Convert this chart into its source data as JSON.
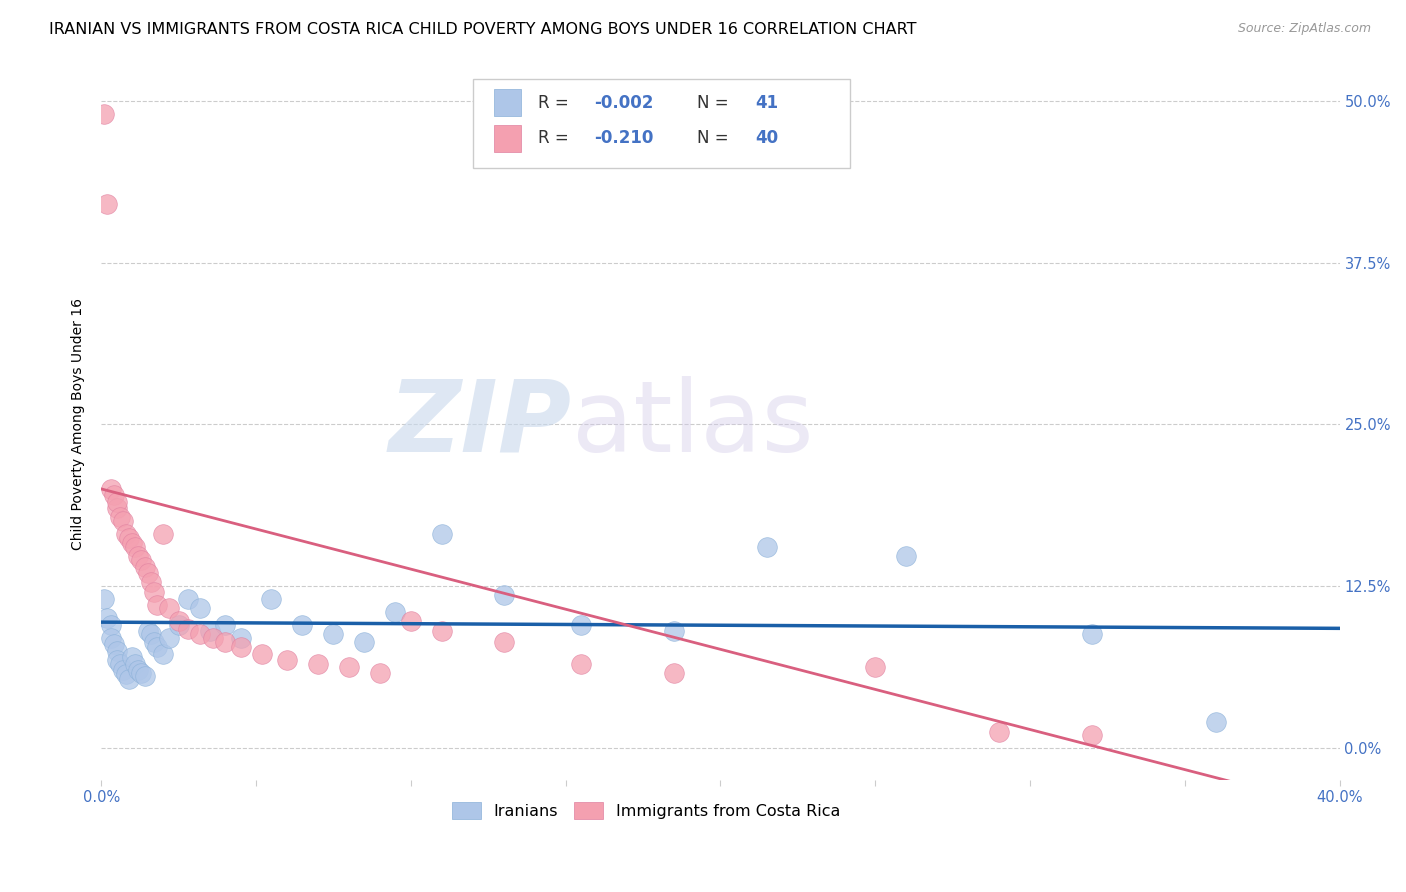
{
  "title": "IRANIAN VS IMMIGRANTS FROM COSTA RICA CHILD POVERTY AMONG BOYS UNDER 16 CORRELATION CHART",
  "source": "Source: ZipAtlas.com",
  "ylabel": "Child Poverty Among Boys Under 16",
  "xlim": [
    0.0,
    0.4
  ],
  "ylim": [
    -0.025,
    0.525
  ],
  "yticks": [
    0.0,
    0.125,
    0.25,
    0.375,
    0.5
  ],
  "ytick_labels": [
    "0.0%",
    "12.5%",
    "25.0%",
    "37.5%",
    "50.0%"
  ],
  "xticks": [
    0.0,
    0.05,
    0.1,
    0.15,
    0.2,
    0.25,
    0.3,
    0.35,
    0.4
  ],
  "xtick_labels": [
    "0.0%",
    "",
    "",
    "",
    "",
    "",
    "",
    "",
    "40.0%"
  ],
  "r_iranian": -0.002,
  "n_iranian": 41,
  "r_costa_rica": -0.21,
  "n_costa_rica": 40,
  "dot_color_iranian": "#aec6e8",
  "dot_color_costa_rica": "#f4a0b0",
  "line_color_iranian": "#1a5fa8",
  "line_color_costa_rica": "#d95f7f",
  "background_color": "#ffffff",
  "watermark_zip": "ZIP",
  "watermark_atlas": "atlas",
  "title_fontsize": 11.5,
  "axis_label_fontsize": 10,
  "tick_fontsize": 10.5,
  "iranians_x": [
    0.001,
    0.002,
    0.003,
    0.003,
    0.004,
    0.005,
    0.005,
    0.006,
    0.007,
    0.008,
    0.009,
    0.01,
    0.011,
    0.012,
    0.013,
    0.014,
    0.015,
    0.016,
    0.017,
    0.018,
    0.02,
    0.022,
    0.025,
    0.028,
    0.032,
    0.035,
    0.04,
    0.045,
    0.055,
    0.065,
    0.075,
    0.085,
    0.095,
    0.11,
    0.13,
    0.155,
    0.185,
    0.215,
    0.26,
    0.32,
    0.36
  ],
  "iranians_y": [
    0.115,
    0.1,
    0.095,
    0.085,
    0.08,
    0.075,
    0.068,
    0.065,
    0.06,
    0.057,
    0.053,
    0.07,
    0.065,
    0.06,
    0.058,
    0.055,
    0.09,
    0.088,
    0.082,
    0.078,
    0.072,
    0.085,
    0.095,
    0.115,
    0.108,
    0.09,
    0.095,
    0.085,
    0.115,
    0.095,
    0.088,
    0.082,
    0.105,
    0.165,
    0.118,
    0.095,
    0.09,
    0.155,
    0.148,
    0.088,
    0.02
  ],
  "costa_rica_x": [
    0.001,
    0.002,
    0.003,
    0.004,
    0.005,
    0.005,
    0.006,
    0.007,
    0.008,
    0.009,
    0.01,
    0.011,
    0.012,
    0.013,
    0.014,
    0.015,
    0.016,
    0.017,
    0.018,
    0.02,
    0.022,
    0.025,
    0.028,
    0.032,
    0.036,
    0.04,
    0.045,
    0.052,
    0.06,
    0.07,
    0.08,
    0.09,
    0.1,
    0.11,
    0.13,
    0.155,
    0.185,
    0.25,
    0.29,
    0.32
  ],
  "costa_rica_y": [
    0.49,
    0.42,
    0.2,
    0.195,
    0.185,
    0.19,
    0.178,
    0.175,
    0.165,
    0.162,
    0.158,
    0.155,
    0.148,
    0.145,
    0.14,
    0.135,
    0.128,
    0.12,
    0.11,
    0.165,
    0.108,
    0.098,
    0.092,
    0.088,
    0.085,
    0.082,
    0.078,
    0.072,
    0.068,
    0.065,
    0.062,
    0.058,
    0.098,
    0.09,
    0.082,
    0.065,
    0.058,
    0.062,
    0.012,
    0.01
  ]
}
